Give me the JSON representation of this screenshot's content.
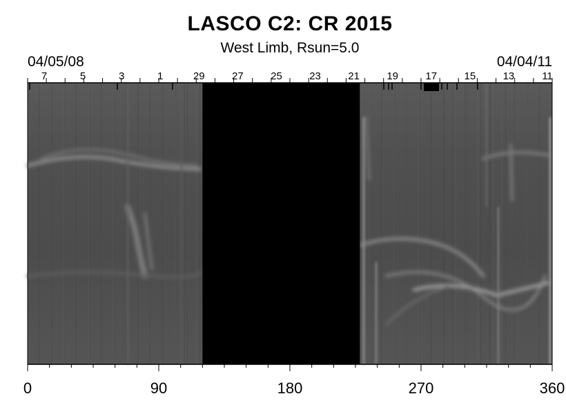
{
  "chart_data": {
    "type": "heatmap",
    "title": "LASCO C2: CR 2015",
    "subtitle": "West Limb, Rsun=5.0",
    "date_left": "04/05/08",
    "date_right": "04/04/11",
    "x_range": [
      0,
      360
    ],
    "x_ticks": [
      0,
      90,
      180,
      270,
      360
    ],
    "x_tick_labels": [
      "0",
      "90",
      "180",
      "270",
      "360"
    ],
    "top_day_labels": [
      "7",
      "5",
      "3",
      "1",
      "29",
      "27",
      "25",
      "23",
      "21",
      "19",
      "17",
      "15",
      "13",
      "11"
    ],
    "colormap": "grayscale",
    "data_gap": {
      "x_start": 120,
      "x_end": 228,
      "color": "#000000"
    }
  },
  "colors": {
    "background": "#ffffff",
    "image_base": "#4e4e4e",
    "gap": "#000000"
  }
}
